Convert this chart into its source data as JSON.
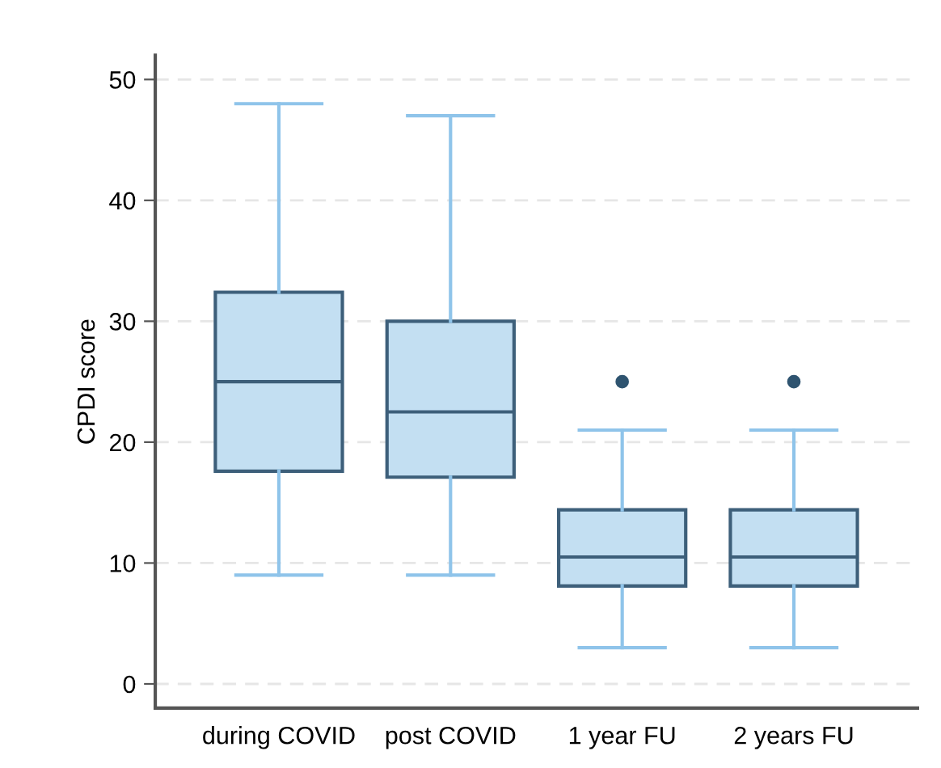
{
  "chart_data": {
    "type": "box",
    "ylabel": "CPDI score",
    "categories": [
      "during COVID",
      "post COVID",
      "1 year FU",
      "2 years FU"
    ],
    "boxes": [
      {
        "low": 9,
        "q1": 17.6,
        "median": 25,
        "q3": 32.4,
        "high": 48
      },
      {
        "low": 9,
        "q1": 17.1,
        "median": 22.5,
        "q3": 30,
        "high": 47
      },
      {
        "low": 3,
        "q1": 8.1,
        "median": 10.5,
        "q3": 14.4,
        "high": 21,
        "outliers": [
          25
        ]
      },
      {
        "low": 3,
        "q1": 8.1,
        "median": 10.5,
        "q3": 14.4,
        "high": 21,
        "outliers": [
          25
        ]
      }
    ],
    "color": "#c3dff2",
    "ylim": [
      -2,
      52
    ],
    "yticks": [
      0,
      10,
      20,
      30,
      40,
      50
    ],
    "grid": "y"
  }
}
